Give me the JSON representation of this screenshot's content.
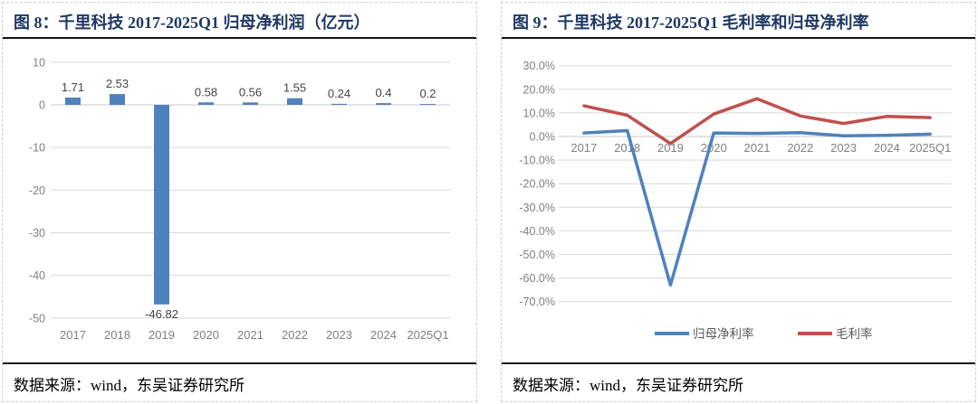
{
  "left_panel": {
    "title": "图 8：千里科技 2017-2025Q1 归母净利润（亿元）",
    "source": "数据来源：wind，东吴证券研究所"
  },
  "right_panel": {
    "title": "图 9：千里科技 2017-2025Q1 毛利率和归母净利率",
    "source": "数据来源：wind，东吴证券研究所"
  },
  "colors": {
    "blue": "#4F81BD",
    "red": "#C0504D",
    "grid": "#D9D9D9",
    "zero_axis": "#C9C9C9",
    "tick_text": "#7F7F7F",
    "data_label": "#444444",
    "legend_text": "#595959",
    "title_navy": "#1F3864"
  },
  "chart_data": [
    {
      "type": "bar",
      "title": "千里科技 2017-2025Q1 归母净利润（亿元）",
      "categories": [
        "2017",
        "2018",
        "2019",
        "2020",
        "2021",
        "2022",
        "2023",
        "2024",
        "2025Q1"
      ],
      "values": [
        1.71,
        2.53,
        -46.82,
        0.58,
        0.56,
        1.55,
        0.24,
        0.4,
        0.2
      ],
      "data_labels": [
        "1.71",
        "2.53",
        "-46.82",
        "0.58",
        "0.56",
        "1.55",
        "0.24",
        "0.4",
        "0.2"
      ],
      "bar_color": "#4F81BD",
      "ylim": [
        -50,
        10
      ],
      "ytick_values": [
        10,
        0,
        -10,
        -20,
        -30,
        -40,
        -50
      ],
      "ytick_labels": [
        "10",
        "0",
        "-10",
        "-20",
        "-30",
        "-40",
        "-50"
      ],
      "grid": true,
      "xlabel": "",
      "ylabel": ""
    },
    {
      "type": "line",
      "title": "千里科技 2017-2025Q1 毛利率和归母净利率",
      "categories": [
        "2017",
        "2018",
        "2019",
        "2020",
        "2021",
        "2022",
        "2023",
        "2024",
        "2025Q1"
      ],
      "series": [
        {
          "name": "归母净利率",
          "color": "#4F81BD",
          "values": [
            1.5,
            2.5,
            -63.0,
            1.5,
            1.3,
            1.6,
            0.3,
            0.5,
            1.0
          ]
        },
        {
          "name": "毛利率",
          "color": "#C0504D",
          "values": [
            13.0,
            9.0,
            -3.0,
            9.5,
            16.0,
            8.7,
            5.5,
            8.5,
            8.0
          ]
        }
      ],
      "ylim": [
        -70,
        30
      ],
      "ytick_values": [
        30,
        20,
        10,
        0,
        -10,
        -20,
        -30,
        -40,
        -50,
        -60,
        -70
      ],
      "ytick_labels": [
        "30.0%",
        "20.0%",
        "10.0%",
        "0.0%",
        "-10.0%",
        "-20.0%",
        "-30.0%",
        "-40.0%",
        "-50.0%",
        "-60.0%",
        "-70.0%"
      ],
      "grid": true,
      "legend_position": "bottom",
      "xlabel": "",
      "ylabel": ""
    }
  ]
}
